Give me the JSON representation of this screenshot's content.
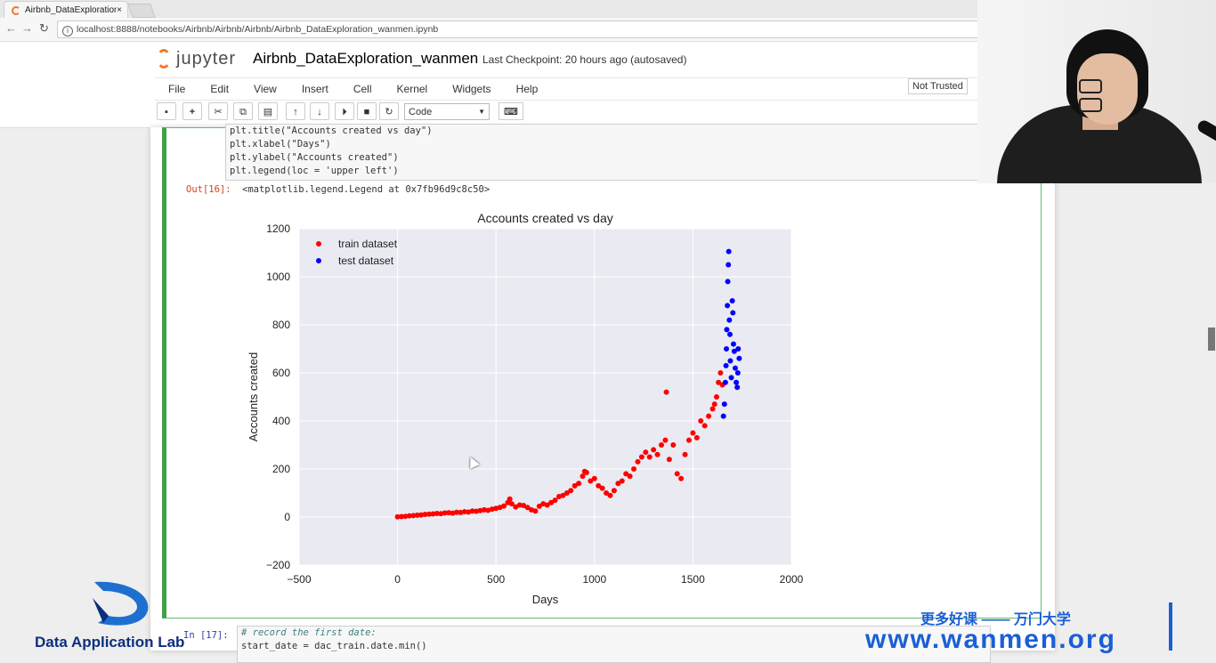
{
  "browser": {
    "tab_title": "Airbnb_DataExploration",
    "tab_close": "×",
    "url": "localhost:8888/notebooks/Airbnb/Airbnb/Airbnb/Airbnb_DataExploration_wanmen.ipynb"
  },
  "jupyter": {
    "logo_text": "jupyter",
    "notebook_name": "Airbnb_DataExploration_wanmen",
    "checkpoint": "Last Checkpoint: 20 hours ago (autosaved)",
    "menu": [
      "File",
      "Edit",
      "View",
      "Insert",
      "Cell",
      "Kernel",
      "Widgets",
      "Help"
    ],
    "trust_status": "Not Trusted",
    "cell_type": "Code"
  },
  "cell16": {
    "code": [
      "plt.title(\"Accounts created vs day\")",
      "plt.xlabel(\"Days\")",
      "plt.ylabel(\"Accounts created\")",
      "plt.legend(loc = 'upper left')"
    ],
    "out_prompt": "Out[16]:",
    "output_text": "<matplotlib.legend.Legend at 0x7fb96d9c8c50>"
  },
  "cell17": {
    "prompt": "In  [17]:",
    "code": [
      "# record the first date:",
      "start_date = dac_train.date.min()"
    ]
  },
  "chart_data": {
    "type": "scatter",
    "title": "Accounts created vs day",
    "xlabel": "Days",
    "ylabel": "Accounts created",
    "xlim": [
      -500,
      2000
    ],
    "ylim": [
      -200,
      1200
    ],
    "xticks": [
      -500,
      0,
      500,
      1000,
      1500,
      2000
    ],
    "yticks": [
      -200,
      0,
      200,
      400,
      600,
      800,
      1000,
      1200
    ],
    "grid": true,
    "legend_position": "upper left",
    "series": [
      {
        "name": "train dataset",
        "color": "#ff0000",
        "points": [
          [
            0,
            1
          ],
          [
            20,
            2
          ],
          [
            40,
            3
          ],
          [
            60,
            5
          ],
          [
            80,
            6
          ],
          [
            100,
            8
          ],
          [
            120,
            9
          ],
          [
            140,
            11
          ],
          [
            160,
            12
          ],
          [
            180,
            13
          ],
          [
            200,
            15
          ],
          [
            220,
            14
          ],
          [
            240,
            17
          ],
          [
            260,
            18
          ],
          [
            280,
            16
          ],
          [
            300,
            20
          ],
          [
            320,
            19
          ],
          [
            340,
            22
          ],
          [
            360,
            21
          ],
          [
            380,
            25
          ],
          [
            400,
            24
          ],
          [
            420,
            27
          ],
          [
            440,
            30
          ],
          [
            460,
            28
          ],
          [
            480,
            33
          ],
          [
            500,
            36
          ],
          [
            520,
            40
          ],
          [
            540,
            46
          ],
          [
            560,
            60
          ],
          [
            570,
            75
          ],
          [
            580,
            55
          ],
          [
            600,
            42
          ],
          [
            620,
            50
          ],
          [
            640,
            48
          ],
          [
            660,
            40
          ],
          [
            680,
            30
          ],
          [
            700,
            25
          ],
          [
            720,
            45
          ],
          [
            740,
            55
          ],
          [
            760,
            50
          ],
          [
            780,
            60
          ],
          [
            800,
            70
          ],
          [
            820,
            85
          ],
          [
            840,
            90
          ],
          [
            860,
            100
          ],
          [
            880,
            110
          ],
          [
            900,
            130
          ],
          [
            920,
            140
          ],
          [
            940,
            170
          ],
          [
            950,
            190
          ],
          [
            960,
            185
          ],
          [
            980,
            150
          ],
          [
            1000,
            160
          ],
          [
            1020,
            130
          ],
          [
            1040,
            120
          ],
          [
            1060,
            100
          ],
          [
            1080,
            90
          ],
          [
            1100,
            110
          ],
          [
            1120,
            140
          ],
          [
            1140,
            150
          ],
          [
            1160,
            180
          ],
          [
            1180,
            170
          ],
          [
            1200,
            200
          ],
          [
            1220,
            230
          ],
          [
            1240,
            250
          ],
          [
            1260,
            270
          ],
          [
            1280,
            250
          ],
          [
            1300,
            280
          ],
          [
            1320,
            260
          ],
          [
            1340,
            300
          ],
          [
            1360,
            320
          ],
          [
            1365,
            520
          ],
          [
            1380,
            240
          ],
          [
            1400,
            300
          ],
          [
            1420,
            180
          ],
          [
            1440,
            160
          ],
          [
            1460,
            260
          ],
          [
            1480,
            320
          ],
          [
            1500,
            350
          ],
          [
            1520,
            330
          ],
          [
            1540,
            400
          ],
          [
            1560,
            380
          ],
          [
            1580,
            420
          ],
          [
            1600,
            450
          ],
          [
            1610,
            470
          ],
          [
            1620,
            500
          ],
          [
            1630,
            560
          ],
          [
            1640,
            600
          ],
          [
            1650,
            550
          ]
        ]
      },
      {
        "name": "test dataset",
        "color": "#0000ff",
        "points": [
          [
            1655,
            420
          ],
          [
            1660,
            470
          ],
          [
            1665,
            560
          ],
          [
            1668,
            630
          ],
          [
            1670,
            700
          ],
          [
            1672,
            780
          ],
          [
            1675,
            880
          ],
          [
            1677,
            980
          ],
          [
            1680,
            1050
          ],
          [
            1682,
            1105
          ],
          [
            1685,
            820
          ],
          [
            1688,
            760
          ],
          [
            1690,
            650
          ],
          [
            1695,
            580
          ],
          [
            1700,
            900
          ],
          [
            1703,
            850
          ],
          [
            1706,
            720
          ],
          [
            1710,
            690
          ],
          [
            1715,
            620
          ],
          [
            1720,
            560
          ],
          [
            1725,
            540
          ],
          [
            1728,
            600
          ],
          [
            1730,
            700
          ],
          [
            1735,
            660
          ]
        ]
      }
    ]
  },
  "watermark": {
    "org_name": "Data Application Lab",
    "slogan": "更多好课 —— 万门大学",
    "url": "www.wanmen.org"
  }
}
